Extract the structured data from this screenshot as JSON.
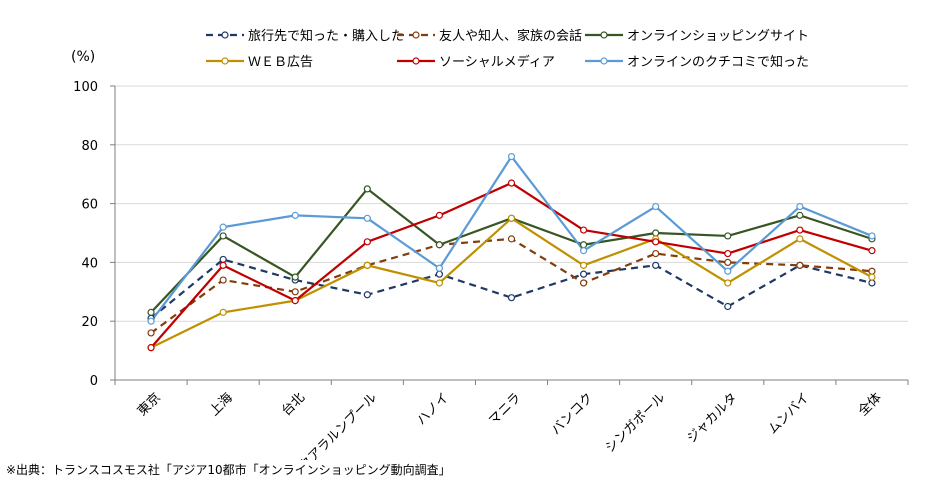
{
  "chart_data": {
    "type": "line",
    "title": "",
    "ylabel": "(%)",
    "xlabel": "",
    "ylim": [
      0,
      100
    ],
    "yticks": [
      0,
      20,
      40,
      60,
      80,
      100
    ],
    "grid": true,
    "legend_position": "top",
    "categories": [
      "東京",
      "上海",
      "台北",
      "クアラルンプール",
      "ハノイ",
      "マニラ",
      "バンコク",
      "シンガポール",
      "ジャカルタ",
      "ムンバイ",
      "全体"
    ],
    "series": [
      {
        "name": "旅行先で知った・購入した",
        "color": "#1f3864",
        "dash": true,
        "values": [
          21,
          41,
          34,
          29,
          36,
          28,
          36,
          39,
          25,
          39,
          33
        ]
      },
      {
        "name": "友人や知人、家族の会話",
        "color": "#843c0c",
        "dash": true,
        "values": [
          16,
          34,
          30,
          39,
          46,
          48,
          33,
          43,
          40,
          39,
          37
        ]
      },
      {
        "name": "オンラインショッピングサイト",
        "color": "#375623",
        "dash": false,
        "values": [
          23,
          49,
          35,
          65,
          46,
          55,
          46,
          50,
          49,
          56,
          48
        ]
      },
      {
        "name": "ＷＥＢ広告",
        "color": "#bf9000",
        "dash": false,
        "values": [
          11,
          23,
          27,
          39,
          33,
          55,
          39,
          48,
          33,
          48,
          35
        ]
      },
      {
        "name": "ソーシャルメディア",
        "color": "#c00000",
        "dash": false,
        "values": [
          11,
          39,
          27,
          47,
          56,
          67,
          51,
          47,
          43,
          51,
          44
        ]
      },
      {
        "name": "オンラインのクチコミで知った",
        "color": "#5b9bd5",
        "dash": false,
        "values": [
          20,
          52,
          56,
          55,
          38,
          76,
          44,
          59,
          37,
          59,
          49
        ]
      }
    ]
  },
  "source": "※出典：トランスコスモス社「アジア10都市「オンラインショッピング動向調査」"
}
